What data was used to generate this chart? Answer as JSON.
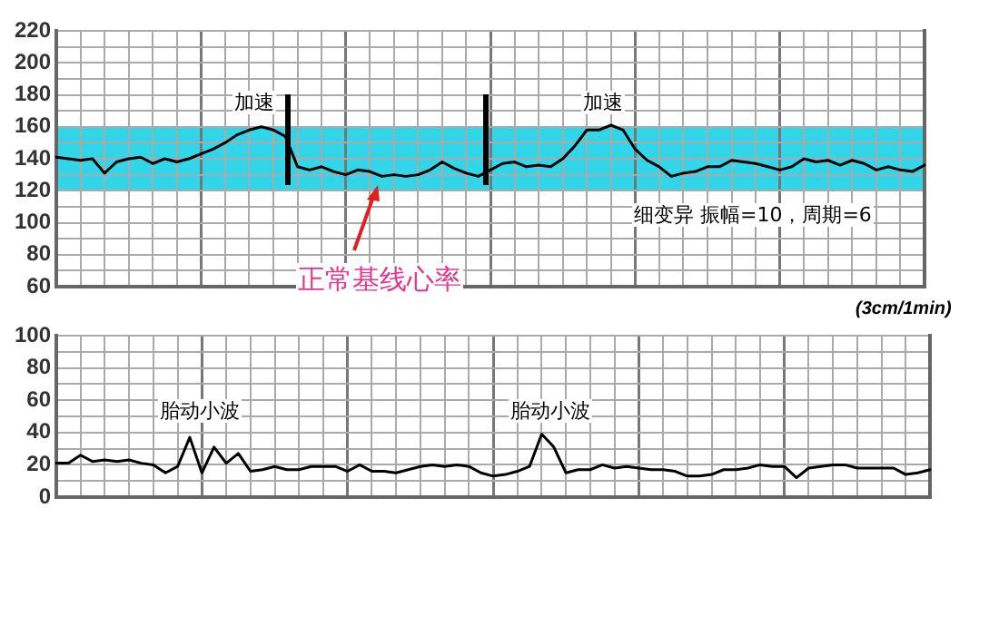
{
  "chart_data": [
    {
      "type": "line",
      "categories": [
        null,
        null,
        null,
        null,
        null,
        null,
        null,
        null,
        null,
        null,
        null,
        null,
        null,
        null,
        null,
        null,
        null,
        null,
        null,
        null,
        null,
        null,
        null,
        null,
        null,
        null,
        null,
        null,
        null,
        null,
        null,
        null,
        null,
        null,
        null,
        null,
        null,
        null,
        null,
        null,
        null,
        null,
        null,
        null,
        null,
        null,
        null,
        null,
        null,
        null,
        null,
        null,
        null,
        null,
        null,
        null,
        null,
        null,
        null,
        null,
        null,
        null,
        null,
        null,
        null,
        null,
        null,
        null,
        null,
        null,
        null,
        null,
        null
      ],
      "series": [
        {
          "color": "#000000",
          "values": [
            141,
            140,
            139,
            140,
            131,
            138,
            140,
            141,
            137,
            140,
            138,
            140,
            143,
            146,
            150,
            155,
            158,
            160,
            158,
            154,
            135,
            133,
            135,
            132,
            130,
            133,
            132,
            129,
            130,
            129,
            130,
            133,
            138,
            134,
            131,
            129,
            133,
            137,
            138,
            135,
            136,
            135,
            140,
            148,
            158,
            158,
            161,
            158,
            146,
            139,
            135,
            129,
            131,
            132,
            135,
            135,
            139,
            138,
            137,
            135,
            133,
            135,
            140,
            138,
            139,
            136,
            139,
            137,
            133,
            135,
            133,
            132,
            136
          ]
        }
      ],
      "ylim": [
        60,
        220
      ],
      "yticks": [
        60,
        {
          "value": 70,
          "label": null
        },
        80,
        {
          "value": 90,
          "label": null
        },
        100,
        {
          "value": 110,
          "label": null
        },
        120,
        {
          "value": 130,
          "label": null
        },
        140,
        {
          "value": 150,
          "label": null
        },
        160,
        {
          "value": 170,
          "label": null
        },
        180,
        {
          "value": 190,
          "label": null
        },
        200,
        {
          "value": 210,
          "label": null
        },
        220
      ],
      "grid": true,
      "tick_labels": "y",
      "marker": "none",
      "legend": false,
      "bands": [
        {
          "axis": "y",
          "from": 120,
          "to": 160,
          "color": "#33d6e8"
        }
      ],
      "annotations": [
        "加速",
        "加速",
        "细变异   振幅=10，周期=6",
        "正常基线心率",
        "(3cm/1min)"
      ]
    },
    {
      "type": "line",
      "categories": [
        null,
        null,
        null,
        null,
        null,
        null,
        null,
        null,
        null,
        null,
        null,
        null,
        null,
        null,
        null,
        null,
        null,
        null,
        null,
        null,
        null,
        null,
        null,
        null,
        null,
        null,
        null,
        null,
        null,
        null,
        null,
        null,
        null,
        null,
        null,
        null,
        null,
        null,
        null,
        null,
        null,
        null,
        null,
        null,
        null,
        null,
        null,
        null,
        null,
        null,
        null,
        null,
        null,
        null,
        null,
        null,
        null,
        null,
        null,
        null,
        null,
        null,
        null,
        null,
        null,
        null,
        null,
        null,
        null,
        null,
        null,
        null,
        null
      ],
      "series": [
        {
          "color": "#000000",
          "values": [
            21,
            21,
            26,
            22,
            23,
            22,
            23,
            21,
            20,
            15,
            19,
            37,
            15,
            31,
            21,
            27,
            16,
            17,
            19,
            17,
            17,
            19,
            19,
            19,
            16,
            20,
            16,
            16,
            15,
            17,
            19,
            20,
            19,
            20,
            19,
            15,
            13,
            14,
            16,
            19,
            39,
            31,
            15,
            17,
            17,
            20,
            18,
            19,
            18,
            17,
            17,
            16,
            13,
            13,
            14,
            17,
            17,
            18,
            20,
            19,
            19,
            12,
            18,
            19,
            20,
            20,
            18,
            18,
            18,
            18,
            14,
            15,
            17
          ]
        }
      ],
      "ylim": [
        0,
        100
      ],
      "yticks": [
        0,
        {
          "value": 10,
          "label": null
        },
        20,
        {
          "value": 30,
          "label": null
        },
        40,
        {
          "value": 50,
          "label": null
        },
        60,
        {
          "value": 70,
          "label": null
        },
        80,
        {
          "value": 90,
          "label": null
        },
        100
      ],
      "grid": true,
      "tick_labels": "y",
      "marker": "none",
      "legend": false,
      "annotations": [
        "胎动小波",
        "胎动小波"
      ]
    }
  ]
}
